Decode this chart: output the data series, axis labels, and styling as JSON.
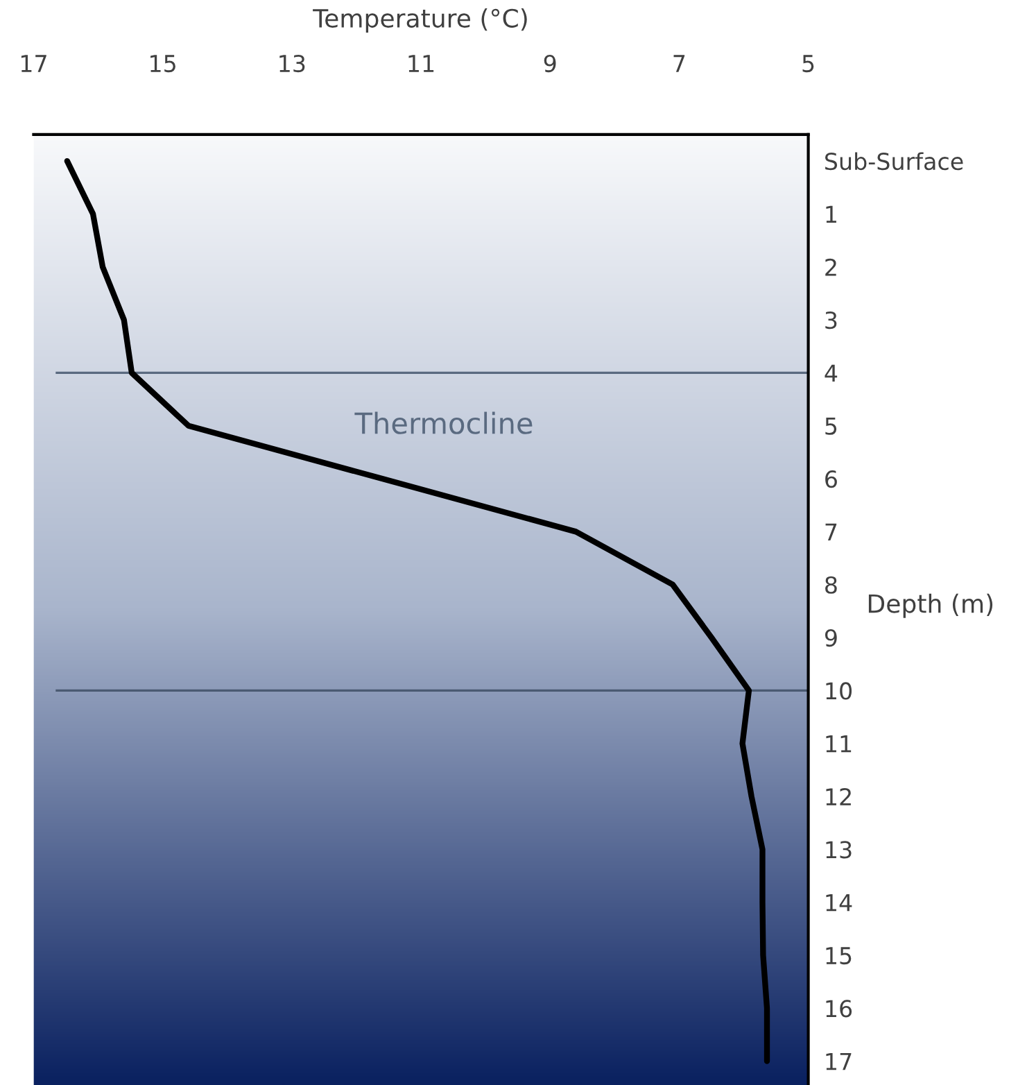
{
  "chart_data": {
    "type": "line",
    "orientation": "horizontal",
    "xlabel": "Temperature (°C)",
    "ylabel": "Depth (m)",
    "categories": [
      "Sub-Surface",
      "1",
      "2",
      "3",
      "4",
      "5",
      "6",
      "7",
      "8",
      "9",
      "10",
      "11",
      "12",
      "13",
      "14",
      "15",
      "16",
      "17"
    ],
    "series": [
      {
        "color": "#000000",
        "values": [
          16.48,
          16.08,
          15.93,
          15.6,
          15.48,
          14.6,
          11.6,
          8.6,
          7.1,
          6.5,
          5.92,
          6.02,
          5.88,
          5.71,
          5.71,
          5.7,
          5.64,
          5.64
        ]
      }
    ],
    "xlim": [
      17,
      5
    ],
    "xticks": [
      17,
      15,
      13,
      11,
      9,
      7,
      5
    ],
    "ref_lines": [
      {
        "axis": "y",
        "value": "4",
        "color": "#5a6a80"
      },
      {
        "axis": "y",
        "value": "10",
        "color": "#4a5a72"
      }
    ],
    "annotations": [
      "Thermocline"
    ],
    "grid": false,
    "legend": false,
    "marker": "none",
    "line_style": "solid"
  }
}
